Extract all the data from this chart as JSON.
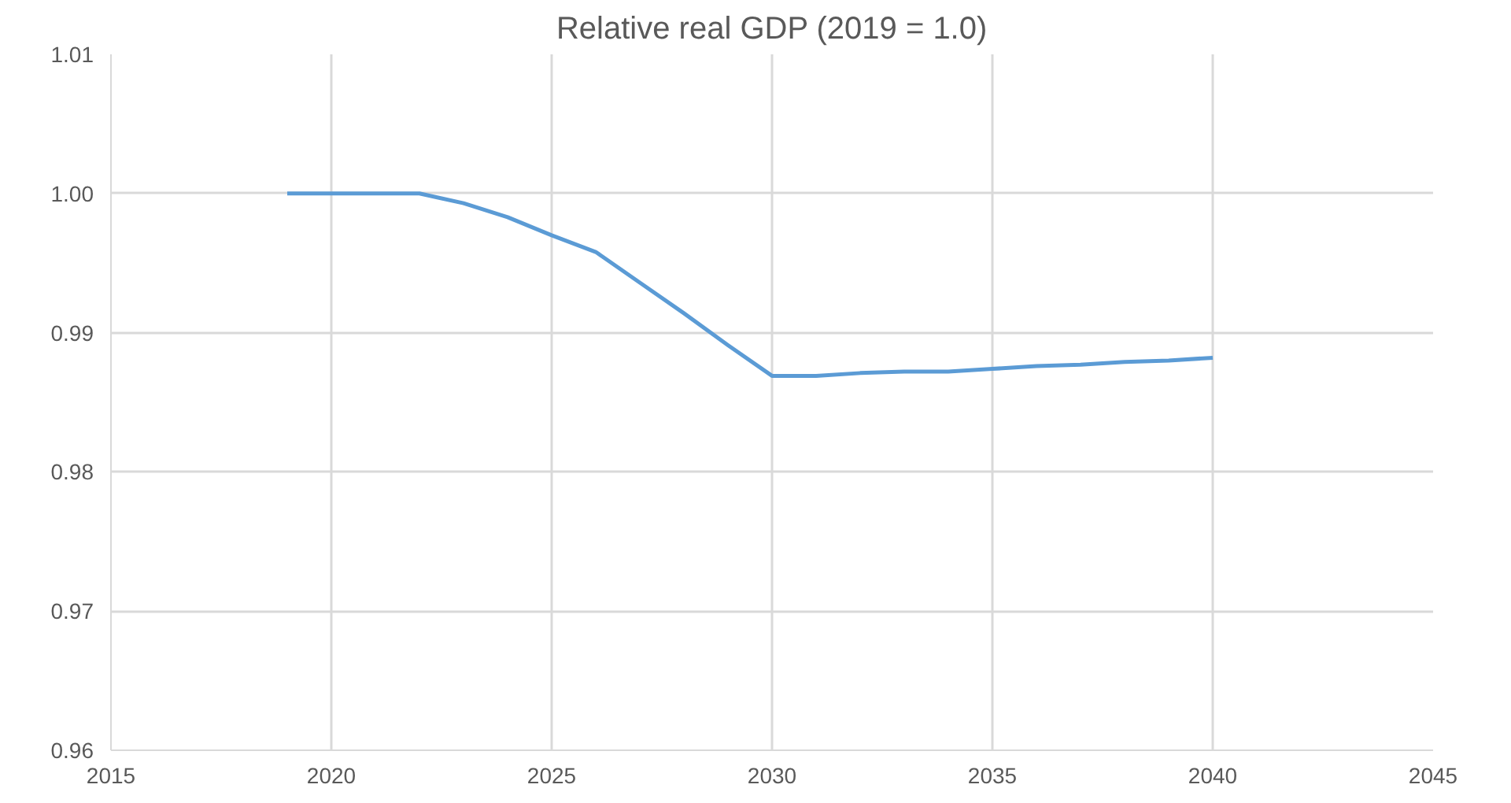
{
  "chart_data": {
    "type": "line",
    "title": "Relative real GDP (2019 = 1.0)",
    "x": [
      2019,
      2020,
      2021,
      2022,
      2023,
      2024,
      2025,
      2026,
      2027,
      2028,
      2029,
      2030,
      2031,
      2032,
      2033,
      2034,
      2035,
      2036,
      2037,
      2038,
      2039,
      2040
    ],
    "series": [
      {
        "color": "#5b9bd5",
        "values": [
          1.0,
          1.0,
          1.0,
          1.0,
          0.9993,
          0.9983,
          0.997,
          0.9958,
          0.9936,
          0.9914,
          0.9891,
          0.9869,
          0.9869,
          0.9871,
          0.9872,
          0.9872,
          0.9874,
          0.9876,
          0.9877,
          0.9879,
          0.988,
          0.9882
        ]
      }
    ],
    "xlim": [
      2015,
      2045
    ],
    "xticks": [
      2015,
      2020,
      2025,
      2030,
      2035,
      2040,
      2045
    ],
    "ylim": [
      0.96,
      1.01
    ],
    "yticks": [
      {
        "value": 0.96,
        "label": "0.96"
      },
      {
        "value": 0.97,
        "label": "0.97"
      },
      {
        "value": 0.98,
        "label": "0.98"
      },
      {
        "value": 0.99,
        "label": "0.99"
      },
      {
        "value": 1.0,
        "label": "1.00"
      },
      {
        "value": 1.01,
        "label": "1.01"
      }
    ],
    "grid": true,
    "marker": "none",
    "line_style": "solid"
  }
}
